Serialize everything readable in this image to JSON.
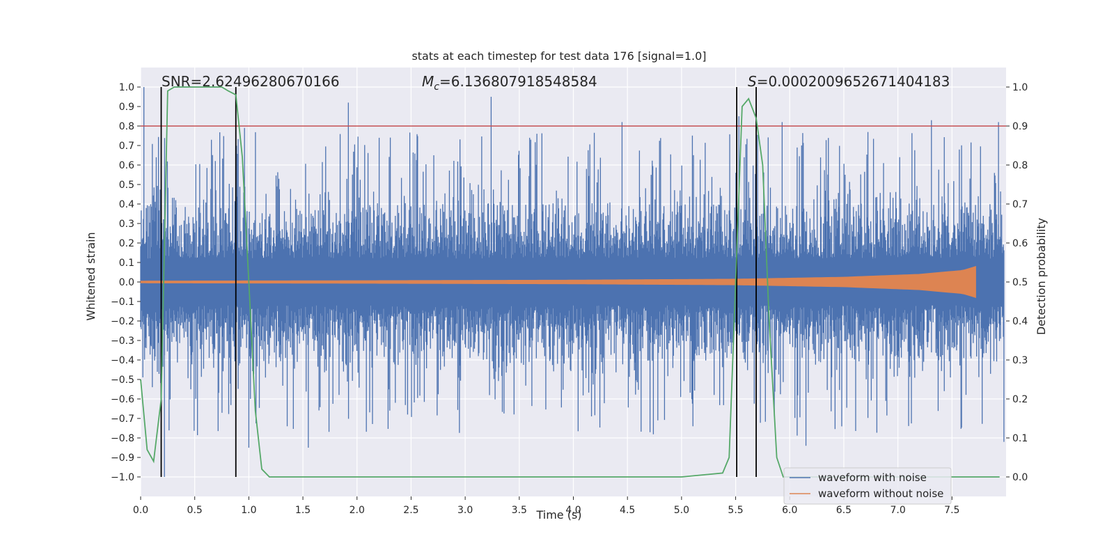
{
  "chart_data": {
    "type": "line",
    "title": "stats at each timestep for test data 176 [signal=1.0]",
    "xlabel": "Time (s)",
    "ylabel_left": "Whitened strain",
    "ylabel_right": "Detection probability",
    "xlim": [
      0.0,
      8.0
    ],
    "ylim_left": [
      -1.1,
      1.1
    ],
    "ylim_right": [
      -0.05,
      1.05
    ],
    "x_ticks": [
      "0.0",
      "0.5",
      "1.0",
      "1.5",
      "2.0",
      "2.5",
      "3.0",
      "3.5",
      "4.0",
      "4.5",
      "5.0",
      "5.5",
      "6.0",
      "6.5",
      "7.0",
      "7.5"
    ],
    "y_ticks_left": [
      "-1.0",
      "-0.9",
      "-0.8",
      "-0.7",
      "-0.6",
      "-0.5",
      "-0.4",
      "-0.3",
      "-0.2",
      "-0.1",
      "0.0",
      "0.1",
      "0.2",
      "0.3",
      "0.4",
      "0.5",
      "0.6",
      "0.7",
      "0.8",
      "0.9",
      "1.0"
    ],
    "y_ticks_right": [
      "0.0",
      "0.1",
      "0.2",
      "0.3",
      "0.4",
      "0.5",
      "0.6",
      "0.7",
      "0.8",
      "0.9",
      "1.0"
    ],
    "grid": true,
    "annotations": {
      "snr": "SNR=2.62496280670166",
      "mc_symbol": "M",
      "mc_sub": "c",
      "mc_value": "=6.136807918548584",
      "s_symbol": "S",
      "s_value": "=0.0002009652671404183"
    },
    "threshold_line": {
      "axis": "right",
      "value": 0.9,
      "color": "#c44e52"
    },
    "vertical_lines_x": [
      0.19,
      0.88,
      5.51,
      5.69
    ],
    "colors": {
      "noise": "#4c72b0",
      "clean": "#dd8452",
      "prob": "#55a868",
      "vline": "#000000",
      "background": "#eaeaf2",
      "grid": "#ffffff"
    },
    "series": [
      {
        "name": "waveform with noise",
        "axis": "left",
        "color": "#4c72b0",
        "description_envelope": {
          "t_range": [
            0.0,
            7.98
          ],
          "typical_max": 0.55,
          "typical_min": -0.55,
          "peaks": [
            [
              0.03,
              1.0
            ],
            [
              0.22,
              -1.0
            ],
            [
              1.0,
              -0.85
            ],
            [
              1.92,
              0.92
            ],
            [
              3.24,
              0.95
            ],
            [
              4.45,
              0.82
            ],
            [
              5.53,
              0.85
            ],
            [
              5.93,
              0.82
            ],
            [
              7.31,
              0.83
            ],
            [
              7.93,
              0.82
            ],
            [
              0.96,
              0.79
            ],
            [
              1.55,
              -0.85
            ],
            [
              6.15,
              -0.84
            ],
            [
              7.98,
              -0.82
            ]
          ]
        }
      },
      {
        "name": "waveform without noise",
        "axis": "left",
        "color": "#dd8452",
        "description_envelope": {
          "t_range": [
            0.0,
            7.72
          ],
          "amplitude_points": [
            [
              0.0,
              0.005
            ],
            [
              2.0,
              0.007
            ],
            [
              4.0,
              0.01
            ],
            [
              5.5,
              0.015
            ],
            [
              6.5,
              0.025
            ],
            [
              7.2,
              0.04
            ],
            [
              7.6,
              0.06
            ],
            [
              7.72,
              0.08
            ]
          ]
        }
      },
      {
        "name": "detection probability",
        "axis": "right",
        "color": "#55a868",
        "x": [
          0.0,
          0.06,
          0.12,
          0.19,
          0.25,
          0.31,
          0.38,
          0.5,
          0.62,
          0.75,
          0.81,
          0.88,
          0.94,
          1.0,
          1.06,
          1.12,
          1.19,
          1.25,
          2.0,
          3.0,
          4.0,
          5.0,
          5.38,
          5.44,
          5.5,
          5.56,
          5.62,
          5.69,
          5.75,
          5.81,
          5.88,
          5.94,
          6.0,
          7.0,
          7.94
        ],
        "values": [
          0.25,
          0.07,
          0.04,
          0.2,
          0.99,
          1.0,
          1.0,
          1.0,
          1.0,
          1.0,
          0.99,
          0.98,
          0.82,
          0.5,
          0.17,
          0.02,
          0.0,
          0.0,
          0.0,
          0.0,
          0.0,
          0.0,
          0.01,
          0.05,
          0.5,
          0.95,
          0.97,
          0.92,
          0.8,
          0.4,
          0.05,
          0.0,
          0.0,
          0.0,
          0.0
        ]
      }
    ],
    "legend": {
      "placement": "lower-right",
      "entries": [
        "waveform with noise",
        "waveform without noise"
      ]
    }
  }
}
